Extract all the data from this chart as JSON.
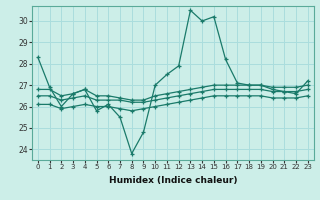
{
  "xlabel": "Humidex (Indice chaleur)",
  "background_color": "#cceee8",
  "grid_color": "#aadddd",
  "line_color": "#1a7a6a",
  "xlim": [
    -0.5,
    23.5
  ],
  "ylim": [
    23.5,
    30.7
  ],
  "yticks": [
    24,
    25,
    26,
    27,
    28,
    29,
    30
  ],
  "xticks": [
    0,
    1,
    2,
    3,
    4,
    5,
    6,
    7,
    8,
    9,
    10,
    11,
    12,
    13,
    14,
    15,
    16,
    17,
    18,
    19,
    20,
    21,
    22,
    23
  ],
  "lines": [
    [
      28.3,
      26.9,
      26.0,
      26.6,
      26.8,
      25.8,
      26.1,
      25.5,
      23.8,
      24.8,
      27.0,
      27.5,
      27.9,
      30.5,
      30.0,
      30.2,
      28.2,
      27.1,
      27.0,
      27.0,
      26.8,
      26.7,
      26.6,
      27.2
    ],
    [
      26.8,
      26.8,
      26.5,
      26.6,
      26.8,
      26.5,
      26.5,
      26.4,
      26.3,
      26.3,
      26.5,
      26.6,
      26.7,
      26.8,
      26.9,
      27.0,
      27.0,
      27.0,
      27.0,
      27.0,
      26.9,
      26.9,
      26.9,
      27.0
    ],
    [
      26.5,
      26.5,
      26.3,
      26.4,
      26.5,
      26.3,
      26.3,
      26.3,
      26.2,
      26.2,
      26.3,
      26.4,
      26.5,
      26.6,
      26.7,
      26.8,
      26.8,
      26.8,
      26.8,
      26.8,
      26.7,
      26.7,
      26.7,
      26.8
    ],
    [
      26.1,
      26.1,
      25.9,
      26.0,
      26.1,
      26.0,
      26.0,
      25.9,
      25.8,
      25.9,
      26.0,
      26.1,
      26.2,
      26.3,
      26.4,
      26.5,
      26.5,
      26.5,
      26.5,
      26.5,
      26.4,
      26.4,
      26.4,
      26.5
    ]
  ]
}
